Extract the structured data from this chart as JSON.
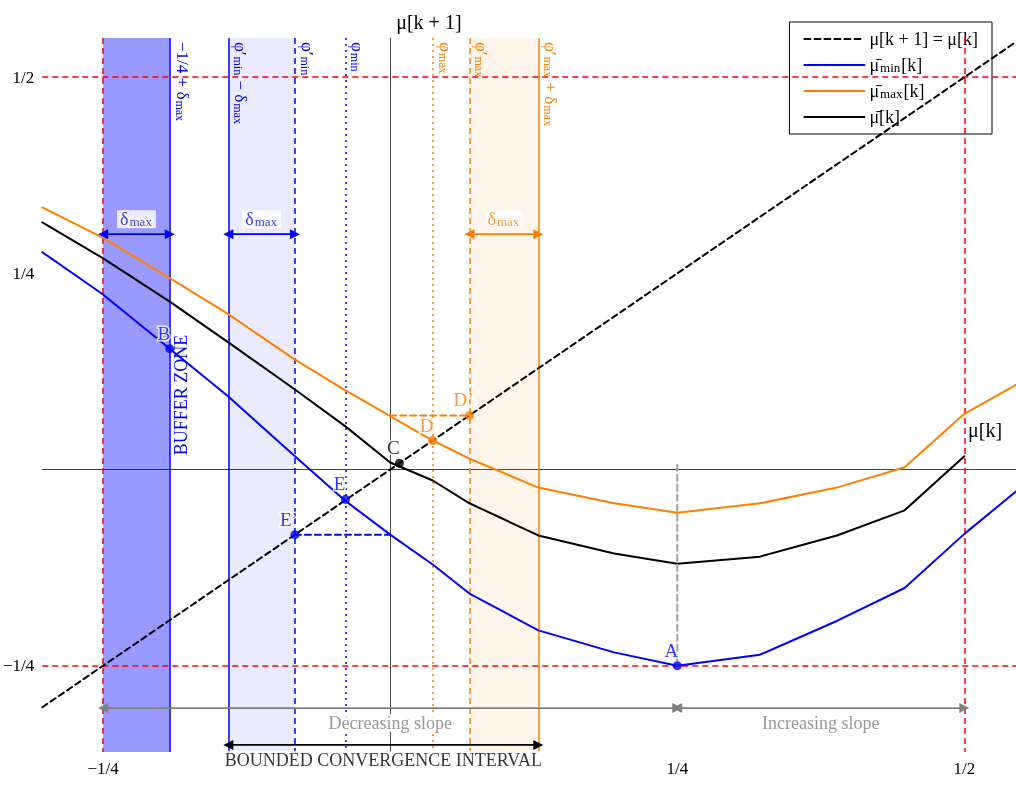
{
  "chart_data": {
    "type": "line",
    "xlabel": "μ[k]",
    "ylabel": "μ[k + 1]",
    "xlim": [
      -0.303,
      0.545
    ],
    "ylim": [
      -0.36,
      0.55
    ],
    "xticks": [
      {
        "value": -0.25,
        "label": "−1/4"
      },
      {
        "value": 0.25,
        "label": "1/4"
      },
      {
        "value": 0.5,
        "label": "1/2"
      }
    ],
    "yticks": [
      {
        "value": -0.25,
        "label": "−1/4"
      },
      {
        "value": 0.25,
        "label": "1/4"
      },
      {
        "value": 0.5,
        "label": "1/2"
      }
    ],
    "grid": false,
    "legend": "top right",
    "marker": "none",
    "x": [
      -0.303,
      -0.251,
      -0.192,
      -0.141,
      -0.083,
      -0.039,
      0,
      0.037,
      0.069,
      0.129,
      0.195,
      0.25,
      0.322,
      0.389,
      0.448,
      0.5,
      0.545
    ],
    "series": [
      {
        "name": "μ[k + 1] = μ[k]",
        "color": "#000000",
        "line_style": "dashed",
        "x": [
          -0.303,
          0.545
        ],
        "values": [
          -0.303,
          0.545
        ]
      },
      {
        "name": "μ̄$_{min}$[k]",
        "color": "#0000ff",
        "line_style": "solid",
        "values": [
          0.277,
          0.224,
          0.154,
          0.093,
          0.017,
          -0.04,
          -0.083,
          -0.121,
          -0.158,
          -0.205,
          -0.233,
          -0.25,
          -0.236,
          -0.193,
          -0.151,
          -0.082,
          -0.028
        ]
      },
      {
        "name": "μ̄$_{max}$[k]",
        "color": "#ff8000",
        "line_style": "solid",
        "values": [
          0.334,
          0.296,
          0.244,
          0.198,
          0.14,
          0.101,
          0.068,
          0.037,
          0.014,
          -0.023,
          -0.043,
          -0.055,
          -0.043,
          -0.023,
          0.003,
          0.071,
          0.108
        ]
      },
      {
        "name": "μ̄[k]",
        "color": "#000000",
        "line_style": "solid",
        "values": [
          0.315,
          0.27,
          0.214,
          0.162,
          0.102,
          0.055,
          0.009,
          -0.014,
          -0.043,
          -0.084,
          -0.107,
          -0.12,
          -0.111,
          -0.084,
          -0.052,
          0.017,
          null
        ]
      },
      {
        "color": "#ff8000",
        "line_style": "dashed",
        "x": [
          0,
          0.069
        ],
        "values": [
          0.069,
          0.069
        ]
      },
      {
        "color": "#0000ff",
        "line_style": "dashed",
        "x": [
          -0.083,
          0
        ],
        "values": [
          -0.083,
          -0.083
        ]
      },
      {
        "color": "#a0a0a0",
        "line_style": "dashed",
        "x": [
          0.25,
          0.25
        ],
        "values": [
          0.006,
          -0.25
        ]
      },
      {
        "color": "#0000ff",
        "line_style": "solid",
        "marker": "triangle",
        "x": [
          -0.25,
          -0.192
        ],
        "values": [
          0.3,
          0.3
        ]
      },
      {
        "color": "#0000ff",
        "line_style": "solid",
        "marker": "triangle",
        "x": [
          -0.141,
          -0.083
        ],
        "values": [
          0.3,
          0.3
        ]
      },
      {
        "color": "#ff8000",
        "line_style": "solid",
        "marker": "triangle",
        "x": [
          0.069,
          0.129
        ],
        "values": [
          0.3,
          0.3
        ]
      },
      {
        "color": "#808080",
        "line_style": "solid",
        "marker": "triangle",
        "x": [
          -0.25,
          0.25
        ],
        "values": [
          -0.304,
          -0.304
        ]
      },
      {
        "color": "#808080",
        "line_style": "solid",
        "marker": "triangle",
        "x": [
          0.25,
          0.5
        ],
        "values": [
          -0.304,
          -0.304
        ]
      },
      {
        "color": "#000000",
        "line_style": "solid",
        "marker": "triangle",
        "x": [
          -0.141,
          0.129
        ],
        "values": [
          -0.351,
          -0.351
        ]
      },
      {
        "type": "scatter",
        "marker": "circle",
        "color": "#0000ff",
        "x": [
          -0.192,
          -0.083,
          -0.039,
          0.25
        ],
        "values": [
          0.154,
          -0.083,
          -0.038,
          -0.25
        ]
      },
      {
        "type": "scatter",
        "marker": "circle",
        "color": "#ff8000",
        "x": [
          0.037,
          0.069
        ],
        "values": [
          0.037,
          0.069
        ]
      },
      {
        "type": "scatter",
        "marker": "circle",
        "color": "#000000",
        "x": [
          0.008
        ],
        "values": [
          0.008
        ]
      }
    ],
    "annotations": [
      {
        "text": "A",
        "x": 0.25,
        "y": -0.25
      },
      {
        "text": "B",
        "x": -0.192,
        "y": 0.154
      },
      {
        "text": "C",
        "x": 0.008,
        "y": 0.008
      },
      {
        "text": "D",
        "x": 0.037,
        "y": 0.037
      },
      {
        "text": "D’",
        "x": 0.069,
        "y": 0.069
      },
      {
        "text": "E",
        "x": -0.039,
        "y": -0.038
      },
      {
        "text": "E’",
        "x": -0.083,
        "y": -0.083
      },
      {
        "text": "δ$_{max}$",
        "x": -0.221,
        "y": 0.3
      },
      {
        "text": "δ$_{max}$",
        "x": -0.112,
        "y": 0.3
      },
      {
        "text": "δ$_{max}$",
        "x": 0.099,
        "y": 0.3
      },
      {
        "text": "Decreasing slope",
        "x": 0,
        "y": -0.304
      },
      {
        "text": "Increasing slope",
        "x": 0.375,
        "y": -0.304
      },
      {
        "text": "BOUNDED CONVERGENCE INTERVAL",
        "x": -0.006,
        "y": -0.351
      }
    ],
    "ref_lines": [
      {
        "axis": "y",
        "value": 0.5,
        "label": null,
        "color": "#ff0000",
        "line_style": "dashed"
      },
      {
        "axis": "y",
        "value": -0.25,
        "label": null,
        "color": "#ff0000",
        "line_style": "dashed"
      },
      {
        "axis": "x",
        "value": -0.25,
        "label": null,
        "color": "#ff0000",
        "line_style": "dashed"
      },
      {
        "axis": "x",
        "value": 0.5,
        "label": null,
        "color": "#ff0000",
        "line_style": "dashed"
      },
      {
        "axis": "x",
        "value": -0.192,
        "label": "−1/4 + δ$_{max}$",
        "color": "#0000ff",
        "line_style": "solid"
      },
      {
        "axis": "x",
        "value": -0.141,
        "label": "φ′$_{min}$ − δ$_{max}$",
        "color": "#0000ff",
        "line_style": "solid"
      },
      {
        "axis": "x",
        "value": -0.083,
        "label": "φ′$_{min}$",
        "color": "#0000ff",
        "line_style": "dashed"
      },
      {
        "axis": "x",
        "value": -0.039,
        "label": "φ$_{min}$",
        "color": "#0000ff",
        "line_style": "dotted"
      },
      {
        "axis": "x",
        "value": 0.037,
        "label": "φ$_{max}$",
        "color": "#ff8000",
        "line_style": "dotted"
      },
      {
        "axis": "x",
        "value": 0.069,
        "label": "φ′$_{max}$",
        "color": "#ff8000",
        "line_style": "dashed"
      },
      {
        "axis": "x",
        "value": 0.129,
        "label": "φ′$_{max}$ + δ$_{max}$",
        "color": "#ff8000",
        "line_style": "solid"
      }
    ],
    "bands": [
      {
        "axis": "x",
        "from": -0.25,
        "to": -0.192,
        "label": "BUFFER ZONE",
        "color": "#0000ff"
      },
      {
        "axis": "x",
        "from": -0.141,
        "to": -0.083,
        "label": null,
        "color": "#0000ff"
      },
      {
        "axis": "x",
        "from": 0.069,
        "to": 0.129,
        "label": null,
        "color": "#ff8000"
      }
    ]
  }
}
